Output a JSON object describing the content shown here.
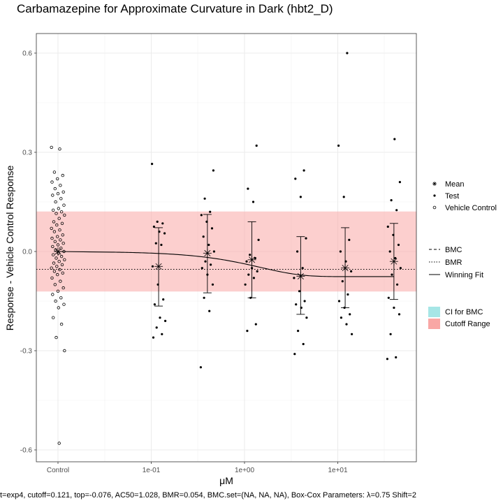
{
  "chart_data": {
    "type": "scatter",
    "title": "Carbamazepine for Approximate Curvature in Dark (hbt2_D)",
    "xlabel": "μM",
    "ylabel": "Response - Vehicle Control Response",
    "footnote": "t=exp4, cutoff=0.121, top=-0.076, AC50=1.028, BMR=0.054, BMC.set=(NA, NA, NA), Box-Cox Parameters: λ=0.75 Shift=2",
    "x_tick_labels": [
      "Control",
      "1e-01",
      "1e+00",
      "1e+01"
    ],
    "y_ticks": [
      -0.6,
      -0.3,
      0.0,
      0.3,
      0.6
    ],
    "y_tick_labels": [
      "-0.6",
      "-0.3",
      "0.0",
      "0.3",
      "0.6"
    ],
    "ylim": [
      -0.64,
      0.66
    ],
    "x_scale": "log10",
    "grid": true,
    "cutoff_range": [
      -0.121,
      0.121
    ],
    "bmr_line": -0.054,
    "legend": {
      "shape_items": [
        "Mean",
        "Test",
        "Vehicle Control"
      ],
      "line_items": [
        "BMC",
        "BMR",
        "Winning Fit"
      ],
      "fill_items": [
        "CI for BMC",
        "Cutoff Range"
      ],
      "fill_colors": [
        "#a6e6e6",
        "#f9a7a5"
      ]
    },
    "control": {
      "mean": 0.0,
      "points": [
        0.315,
        0.31,
        0.24,
        0.23,
        0.22,
        0.21,
        0.2,
        0.19,
        0.18,
        0.175,
        0.17,
        0.16,
        0.15,
        0.14,
        0.13,
        0.125,
        0.12,
        0.115,
        0.11,
        0.1,
        0.09,
        0.085,
        0.08,
        0.07,
        0.065,
        0.06,
        0.05,
        0.045,
        0.04,
        0.035,
        0.03,
        0.025,
        0.02,
        0.015,
        0.01,
        0.005,
        0.0,
        -0.005,
        -0.01,
        -0.015,
        -0.02,
        -0.025,
        -0.03,
        -0.035,
        -0.04,
        -0.045,
        -0.05,
        -0.055,
        -0.06,
        -0.065,
        -0.07,
        -0.08,
        -0.09,
        -0.1,
        -0.11,
        -0.12,
        -0.13,
        -0.14,
        -0.15,
        -0.16,
        -0.17,
        -0.2,
        -0.22,
        -0.26,
        -0.3,
        -0.58
      ]
    },
    "concentrations": [
      {
        "conc": 0.12,
        "mean": -0.045,
        "ci": [
          -0.165,
          0.072
        ],
        "points": [
          0.265,
          0.09,
          0.085,
          0.075,
          0.06,
          0.055,
          0.025,
          0.02,
          -0.045,
          -0.1,
          -0.145,
          -0.16,
          -0.2,
          -0.21,
          -0.23,
          -0.25,
          -0.26
        ]
      },
      {
        "conc": 0.4,
        "mean": -0.005,
        "ci": [
          -0.125,
          0.112
        ],
        "points": [
          0.245,
          0.16,
          0.12,
          0.11,
          0.09,
          0.07,
          0.045,
          0.02,
          0.0,
          -0.03,
          -0.04,
          -0.05,
          -0.07,
          -0.1,
          -0.14,
          -0.18,
          -0.35
        ]
      },
      {
        "conc": 1.2,
        "mean": -0.025,
        "ci": [
          -0.14,
          0.09
        ],
        "points": [
          0.32,
          0.19,
          0.15,
          0.035,
          -0.01,
          -0.02,
          -0.03,
          -0.05,
          -0.06,
          -0.07,
          -0.08,
          -0.1,
          -0.14,
          -0.22,
          -0.24
        ]
      },
      {
        "conc": 4.0,
        "mean": -0.075,
        "ci": [
          -0.19,
          0.045
        ],
        "points": [
          0.245,
          0.22,
          0.165,
          0.04,
          0.0,
          -0.05,
          -0.08,
          -0.12,
          -0.15,
          -0.16,
          -0.17,
          -0.2,
          -0.24,
          -0.28,
          -0.31
        ]
      },
      {
        "conc": 12.0,
        "mean": -0.05,
        "ci": [
          -0.17,
          0.072
        ],
        "points": [
          0.6,
          0.32,
          0.165,
          0.035,
          0.0,
          -0.03,
          -0.06,
          -0.09,
          -0.13,
          -0.15,
          -0.17,
          -0.19,
          -0.2,
          -0.22,
          -0.25
        ]
      },
      {
        "conc": 40.0,
        "mean": -0.03,
        "ci": [
          -0.145,
          0.085
        ],
        "points": [
          0.34,
          0.21,
          0.155,
          0.125,
          0.075,
          0.05,
          0.02,
          0.0,
          -0.02,
          -0.05,
          -0.07,
          -0.1,
          -0.14,
          -0.17,
          -0.19,
          -0.25,
          -0.32,
          -0.325
        ]
      }
    ],
    "winning_fit": {
      "model": "exp4",
      "top": -0.076,
      "ac50": 1.028
    }
  }
}
